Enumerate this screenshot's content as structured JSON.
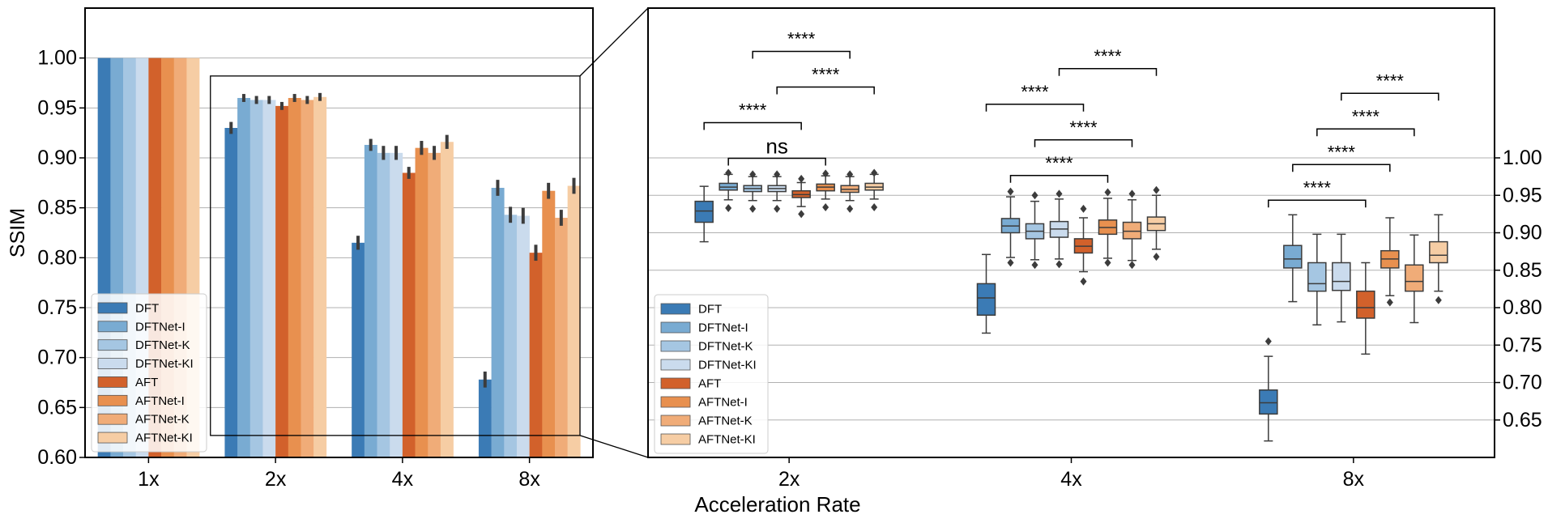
{
  "colors": [
    "#3b7bb5",
    "#79abd2",
    "#a5c6e2",
    "#cadbed",
    "#d2612b",
    "#e8904f",
    "#f0ac78",
    "#f6cda4"
  ],
  "legend_labels": [
    "DFT",
    "DFTNet-I",
    "DFTNet-K",
    "DFTNet-KI",
    "AFT",
    "AFTNet-I",
    "AFTNet-K",
    "AFTNet-KI"
  ],
  "chart_data": [
    {
      "type": "bar",
      "ylabel": "SSIM",
      "ylim": [
        0.6,
        1.05
      ],
      "yticks": [
        "0.60",
        "0.65",
        "0.70",
        "0.75",
        "0.80",
        "0.85",
        "0.90",
        "0.95",
        "1.00"
      ],
      "categories": [
        "1x",
        "2x",
        "4x",
        "8x"
      ],
      "legend_position": "lower-left",
      "grid": "horizontal",
      "series": [
        {
          "name": "DFT",
          "values": [
            1.0,
            0.93,
            0.815,
            0.678
          ],
          "err": [
            0,
            0.006,
            0.007,
            0.008
          ]
        },
        {
          "name": "DFTNet-I",
          "values": [
            1.0,
            0.96,
            0.913,
            0.87
          ],
          "err": [
            0,
            0.004,
            0.006,
            0.008
          ]
        },
        {
          "name": "DFTNet-K",
          "values": [
            1.0,
            0.958,
            0.905,
            0.843
          ],
          "err": [
            0,
            0.004,
            0.007,
            0.008
          ]
        },
        {
          "name": "DFTNet-KI",
          "values": [
            1.0,
            0.958,
            0.905,
            0.842
          ],
          "err": [
            0,
            0.004,
            0.007,
            0.008
          ]
        },
        {
          "name": "AFT",
          "values": [
            1.0,
            0.952,
            0.885,
            0.805
          ],
          "err": [
            0,
            0.004,
            0.006,
            0.008
          ]
        },
        {
          "name": "AFTNet-I",
          "values": [
            1.0,
            0.96,
            0.91,
            0.867
          ],
          "err": [
            0,
            0.004,
            0.007,
            0.008
          ]
        },
        {
          "name": "AFTNet-K",
          "values": [
            1.0,
            0.958,
            0.905,
            0.84
          ],
          "err": [
            0,
            0.004,
            0.007,
            0.008
          ]
        },
        {
          "name": "AFTNet-KI",
          "values": [
            1.0,
            0.961,
            0.916,
            0.872
          ],
          "err": [
            0,
            0.004,
            0.007,
            0.008
          ]
        }
      ]
    },
    {
      "type": "box",
      "xlabel": "Acceleration Rate",
      "ylim": [
        0.6,
        1.2
      ],
      "yticks": [
        "0.65",
        "0.70",
        "0.75",
        "0.80",
        "0.85",
        "0.90",
        "0.95",
        "1.00"
      ],
      "categories": [
        "2x",
        "4x",
        "8x"
      ],
      "legend_position": "lower-left",
      "grid": "horizontal",
      "groups": [
        {
          "category": "2x",
          "boxes": [
            {
              "name": "DFT",
              "q1": 0.914,
              "median": 0.929,
              "q3": 0.942,
              "whislo": 0.888,
              "whishi": 0.962,
              "outliers": []
            },
            {
              "name": "DFTNet-I",
              "q1": 0.957,
              "median": 0.961,
              "q3": 0.966,
              "whislo": 0.944,
              "whishi": 0.978,
              "outliers": [
                0.933,
                0.98
              ]
            },
            {
              "name": "DFTNet-K",
              "q1": 0.955,
              "median": 0.959,
              "q3": 0.963,
              "whislo": 0.943,
              "whishi": 0.975,
              "outliers": [
                0.932,
                0.978
              ]
            },
            {
              "name": "DFTNet-KI",
              "q1": 0.955,
              "median": 0.959,
              "q3": 0.963,
              "whislo": 0.943,
              "whishi": 0.975,
              "outliers": [
                0.932,
                0.978
              ]
            },
            {
              "name": "AFT",
              "q1": 0.947,
              "median": 0.951,
              "q3": 0.956,
              "whislo": 0.935,
              "whishi": 0.967,
              "outliers": [
                0.925,
                0.972
              ]
            },
            {
              "name": "AFTNet-I",
              "q1": 0.956,
              "median": 0.961,
              "q3": 0.965,
              "whislo": 0.945,
              "whishi": 0.976,
              "outliers": [
                0.934,
                0.979
              ]
            },
            {
              "name": "AFTNet-K",
              "q1": 0.954,
              "median": 0.958,
              "q3": 0.963,
              "whislo": 0.943,
              "whishi": 0.975,
              "outliers": [
                0.932,
                0.978
              ]
            },
            {
              "name": "AFTNet-KI",
              "q1": 0.957,
              "median": 0.961,
              "q3": 0.966,
              "whislo": 0.945,
              "whishi": 0.978,
              "outliers": [
                0.934,
                0.98
              ]
            }
          ],
          "brackets": [
            {
              "from": 1,
              "to": 5,
              "level": 0,
              "text": "ns"
            },
            {
              "from": 0,
              "to": 4,
              "level": 1,
              "text": "****"
            },
            {
              "from": 3,
              "to": 7,
              "level": 2,
              "text": "****"
            },
            {
              "from": 2,
              "to": 6,
              "level": 3,
              "text": "****"
            }
          ]
        },
        {
          "category": "4x",
          "boxes": [
            {
              "name": "DFT",
              "q1": 0.79,
              "median": 0.813,
              "q3": 0.832,
              "whislo": 0.766,
              "whishi": 0.871,
              "outliers": []
            },
            {
              "name": "DFTNet-I",
              "q1": 0.9,
              "median": 0.909,
              "q3": 0.919,
              "whislo": 0.867,
              "whishi": 0.948,
              "outliers": [
                0.86,
                0.955
              ]
            },
            {
              "name": "DFTNet-K",
              "q1": 0.892,
              "median": 0.902,
              "q3": 0.912,
              "whislo": 0.864,
              "whishi": 0.942,
              "outliers": [
                0.857,
                0.95
              ]
            },
            {
              "name": "DFTNet-KI",
              "q1": 0.894,
              "median": 0.905,
              "q3": 0.915,
              "whislo": 0.865,
              "whishi": 0.945,
              "outliers": [
                0.858,
                0.952
              ]
            },
            {
              "name": "AFT",
              "q1": 0.873,
              "median": 0.882,
              "q3": 0.892,
              "whislo": 0.848,
              "whishi": 0.92,
              "outliers": [
                0.835,
                0.932
              ]
            },
            {
              "name": "AFTNet-I",
              "q1": 0.898,
              "median": 0.907,
              "q3": 0.917,
              "whislo": 0.866,
              "whishi": 0.946,
              "outliers": [
                0.86,
                0.954
              ]
            },
            {
              "name": "AFTNet-K",
              "q1": 0.892,
              "median": 0.902,
              "q3": 0.914,
              "whislo": 0.863,
              "whishi": 0.944,
              "outliers": [
                0.857,
                0.952
              ]
            },
            {
              "name": "AFTNet-KI",
              "q1": 0.903,
              "median": 0.912,
              "q3": 0.921,
              "whislo": 0.878,
              "whishi": 0.95,
              "outliers": [
                0.868,
                0.957
              ]
            }
          ],
          "brackets": [
            {
              "from": 1,
              "to": 5,
              "level": 0,
              "text": "****"
            },
            {
              "from": 2,
              "to": 6,
              "level": 1,
              "text": "****"
            },
            {
              "from": 0,
              "to": 4,
              "level": 2,
              "text": "****"
            },
            {
              "from": 3,
              "to": 7,
              "level": 3,
              "text": "****"
            }
          ]
        },
        {
          "category": "8x",
          "boxes": [
            {
              "name": "DFT",
              "q1": 0.658,
              "median": 0.673,
              "q3": 0.69,
              "whislo": 0.622,
              "whishi": 0.735,
              "outliers": [
                0.755
              ]
            },
            {
              "name": "DFTNet-I",
              "q1": 0.853,
              "median": 0.865,
              "q3": 0.883,
              "whislo": 0.808,
              "whishi": 0.924,
              "outliers": []
            },
            {
              "name": "DFTNet-K",
              "q1": 0.822,
              "median": 0.832,
              "q3": 0.86,
              "whislo": 0.777,
              "whishi": 0.898,
              "outliers": []
            },
            {
              "name": "DFTNet-KI",
              "q1": 0.823,
              "median": 0.835,
              "q3": 0.86,
              "whislo": 0.781,
              "whishi": 0.898,
              "outliers": []
            },
            {
              "name": "AFT",
              "q1": 0.786,
              "median": 0.8,
              "q3": 0.822,
              "whislo": 0.738,
              "whishi": 0.86,
              "outliers": []
            },
            {
              "name": "AFTNet-I",
              "q1": 0.853,
              "median": 0.865,
              "q3": 0.876,
              "whislo": 0.816,
              "whishi": 0.92,
              "outliers": [
                0.807
              ]
            },
            {
              "name": "AFTNet-K",
              "q1": 0.822,
              "median": 0.835,
              "q3": 0.857,
              "whislo": 0.78,
              "whishi": 0.897,
              "outliers": []
            },
            {
              "name": "AFTNet-KI",
              "q1": 0.86,
              "median": 0.87,
              "q3": 0.888,
              "whislo": 0.822,
              "whishi": 0.924,
              "outliers": [
                0.81
              ]
            }
          ],
          "brackets": [
            {
              "from": 0,
              "to": 4,
              "level": 0,
              "text": "****"
            },
            {
              "from": 1,
              "to": 5,
              "level": 1,
              "text": "****"
            },
            {
              "from": 2,
              "to": 6,
              "level": 2,
              "text": "****"
            },
            {
              "from": 3,
              "to": 7,
              "level": 3,
              "text": "****"
            }
          ]
        }
      ]
    }
  ]
}
